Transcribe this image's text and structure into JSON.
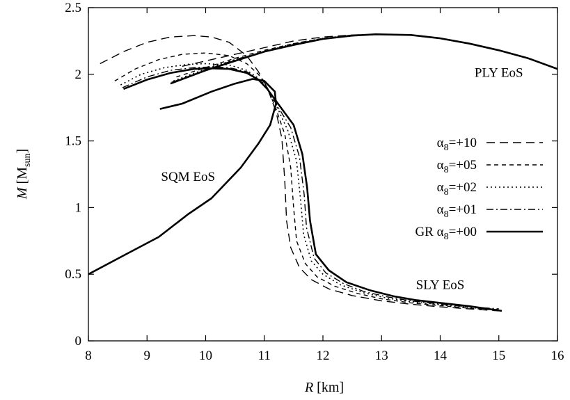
{
  "chart_data": {
    "type": "line",
    "xlabel": {
      "var": "R",
      "unit": " [km]"
    },
    "ylabel": {
      "var": "M",
      "base": " [M",
      "sub": "sun",
      "close": "]"
    },
    "xlim": [
      8,
      16
    ],
    "ylim": [
      0,
      2.5
    ],
    "xticks": [
      "8",
      "9",
      "10",
      "11",
      "12",
      "13",
      "14",
      "15",
      "16"
    ],
    "yticks": [
      "0",
      "0.5",
      "1",
      "1.5",
      "2",
      "2.5"
    ],
    "grid": false,
    "legend_position": "right-center",
    "annotations": [
      {
        "text": "PLY EoS",
        "x": 15.0,
        "y": 1.98
      },
      {
        "text": "SQM EoS",
        "x": 9.7,
        "y": 1.2
      },
      {
        "text": "SLY EoS",
        "x": 14.0,
        "y": 0.39
      }
    ],
    "series": [
      {
        "name_prefix": "",
        "name_sym": "α",
        "name_sub": "8",
        "name_suffix": "=+10",
        "dash": "12,7",
        "width": 1.4,
        "ply": [
          [
            8.2,
            2.08
          ],
          [
            8.6,
            2.17
          ],
          [
            9.0,
            2.24
          ],
          [
            9.4,
            2.28
          ],
          [
            9.8,
            2.29
          ],
          [
            10.1,
            2.28
          ],
          [
            10.4,
            2.24
          ],
          [
            10.7,
            2.14
          ],
          [
            10.9,
            2.02
          ],
          [
            11.05,
            1.9
          ],
          [
            11.2,
            1.72
          ],
          [
            11.3,
            1.52
          ],
          [
            11.35,
            1.2
          ],
          [
            11.38,
            0.9
          ],
          [
            11.45,
            0.7
          ],
          [
            11.6,
            0.55
          ],
          [
            11.8,
            0.46
          ],
          [
            12.1,
            0.39
          ],
          [
            12.5,
            0.34
          ],
          [
            13.0,
            0.3
          ],
          [
            13.5,
            0.275
          ],
          [
            14.0,
            0.255
          ],
          [
            14.5,
            0.24
          ],
          [
            15.0,
            0.225
          ]
        ],
        "sly": [
          [
            9.6,
            2.06
          ],
          [
            10.0,
            2.1
          ],
          [
            10.5,
            2.15
          ],
          [
            11.0,
            2.2
          ],
          [
            11.5,
            2.25
          ],
          [
            12.0,
            2.28
          ],
          [
            12.5,
            2.295
          ],
          [
            13.0,
            2.3
          ],
          [
            13.5,
            2.295
          ],
          [
            14.0,
            2.27
          ],
          [
            14.5,
            2.23
          ],
          [
            15.0,
            2.18
          ],
          [
            15.5,
            2.12
          ],
          [
            16.0,
            2.04
          ]
        ]
      },
      {
        "name_prefix": "",
        "name_sym": "α",
        "name_sub": "8",
        "name_suffix": "=+05",
        "dash": "6,5",
        "width": 1.4,
        "ply": [
          [
            8.45,
            1.95
          ],
          [
            8.8,
            2.04
          ],
          [
            9.2,
            2.11
          ],
          [
            9.6,
            2.15
          ],
          [
            10.0,
            2.16
          ],
          [
            10.4,
            2.14
          ],
          [
            10.7,
            2.08
          ],
          [
            10.9,
            2.0
          ],
          [
            11.05,
            1.9
          ],
          [
            11.2,
            1.74
          ],
          [
            11.35,
            1.55
          ],
          [
            11.45,
            1.3
          ],
          [
            11.5,
            1.0
          ],
          [
            11.55,
            0.75
          ],
          [
            11.7,
            0.58
          ],
          [
            11.9,
            0.48
          ],
          [
            12.2,
            0.41
          ],
          [
            12.6,
            0.355
          ],
          [
            13.0,
            0.315
          ],
          [
            13.5,
            0.285
          ],
          [
            14.0,
            0.265
          ],
          [
            14.5,
            0.245
          ],
          [
            15.0,
            0.23
          ]
        ],
        "sly": [
          [
            9.5,
            1.98
          ],
          [
            10.0,
            2.05
          ],
          [
            10.5,
            2.12
          ],
          [
            11.0,
            2.18
          ],
          [
            11.5,
            2.23
          ],
          [
            12.0,
            2.27
          ],
          [
            12.5,
            2.295
          ],
          [
            13.0,
            2.3
          ],
          [
            13.5,
            2.295
          ],
          [
            14.0,
            2.27
          ],
          [
            14.5,
            2.23
          ],
          [
            15.0,
            2.18
          ],
          [
            15.5,
            2.12
          ],
          [
            16.0,
            2.04
          ]
        ]
      },
      {
        "name_prefix": "",
        "name_sym": "α",
        "name_sub": "8",
        "name_suffix": "=+02",
        "dash": "2,4",
        "width": 1.6,
        "ply": [
          [
            8.55,
            1.92
          ],
          [
            8.9,
            2.0
          ],
          [
            9.3,
            2.05
          ],
          [
            9.7,
            2.075
          ],
          [
            10.0,
            2.08
          ],
          [
            10.4,
            2.07
          ],
          [
            10.7,
            2.03
          ],
          [
            10.9,
            1.97
          ],
          [
            11.05,
            1.9
          ],
          [
            11.2,
            1.77
          ],
          [
            11.4,
            1.58
          ],
          [
            11.55,
            1.35
          ],
          [
            11.62,
            1.05
          ],
          [
            11.67,
            0.8
          ],
          [
            11.8,
            0.6
          ],
          [
            12.0,
            0.5
          ],
          [
            12.3,
            0.42
          ],
          [
            12.7,
            0.36
          ],
          [
            13.1,
            0.32
          ],
          [
            13.5,
            0.295
          ],
          [
            14.0,
            0.27
          ],
          [
            14.5,
            0.25
          ],
          [
            15.0,
            0.235
          ]
        ],
        "sly": [
          [
            9.45,
            1.95
          ],
          [
            10.0,
            2.04
          ],
          [
            10.5,
            2.11
          ],
          [
            11.0,
            2.17
          ],
          [
            11.5,
            2.23
          ],
          [
            12.0,
            2.27
          ],
          [
            12.5,
            2.29
          ],
          [
            13.0,
            2.3
          ],
          [
            13.5,
            2.295
          ],
          [
            14.0,
            2.27
          ],
          [
            14.5,
            2.23
          ],
          [
            15.0,
            2.18
          ],
          [
            15.5,
            2.12
          ],
          [
            16.0,
            2.04
          ]
        ]
      },
      {
        "name_prefix": "",
        "name_sym": "α",
        "name_sub": "8",
        "name_suffix": "=+01",
        "dash": "10,4,2,4",
        "width": 1.4,
        "ply": [
          [
            8.58,
            1.9
          ],
          [
            9.0,
            1.98
          ],
          [
            9.4,
            2.03
          ],
          [
            9.8,
            2.05
          ],
          [
            10.1,
            2.055
          ],
          [
            10.4,
            2.05
          ],
          [
            10.7,
            2.02
          ],
          [
            10.9,
            1.96
          ],
          [
            11.05,
            1.89
          ],
          [
            11.2,
            1.78
          ],
          [
            11.45,
            1.6
          ],
          [
            11.6,
            1.38
          ],
          [
            11.68,
            1.1
          ],
          [
            11.72,
            0.85
          ],
          [
            11.85,
            0.62
          ],
          [
            12.05,
            0.51
          ],
          [
            12.35,
            0.43
          ],
          [
            12.7,
            0.37
          ],
          [
            13.1,
            0.33
          ],
          [
            13.5,
            0.3
          ],
          [
            14.0,
            0.275
          ],
          [
            14.5,
            0.255
          ],
          [
            15.0,
            0.24
          ]
        ],
        "sly": [
          [
            9.42,
            1.94
          ],
          [
            10.0,
            2.03
          ],
          [
            10.5,
            2.11
          ],
          [
            11.0,
            2.17
          ],
          [
            11.5,
            2.225
          ],
          [
            12.0,
            2.265
          ],
          [
            12.5,
            2.29
          ],
          [
            13.0,
            2.3
          ],
          [
            13.5,
            2.295
          ],
          [
            14.0,
            2.27
          ],
          [
            14.5,
            2.23
          ],
          [
            15.0,
            2.18
          ],
          [
            15.5,
            2.12
          ],
          [
            16.0,
            2.04
          ]
        ]
      },
      {
        "name_prefix": "GR ",
        "name_sym": "α",
        "name_sub": "8",
        "name_suffix": "=+00",
        "dash": "",
        "width": 2.6,
        "ply": [
          [
            8.6,
            1.89
          ],
          [
            9.0,
            1.96
          ],
          [
            9.4,
            2.01
          ],
          [
            9.8,
            2.04
          ],
          [
            10.1,
            2.045
          ],
          [
            10.4,
            2.04
          ],
          [
            10.7,
            2.01
          ],
          [
            10.9,
            1.96
          ],
          [
            11.05,
            1.89
          ],
          [
            11.2,
            1.8
          ],
          [
            11.5,
            1.62
          ],
          [
            11.65,
            1.4
          ],
          [
            11.73,
            1.15
          ],
          [
            11.78,
            0.9
          ],
          [
            11.88,
            0.65
          ],
          [
            12.1,
            0.53
          ],
          [
            12.4,
            0.44
          ],
          [
            12.8,
            0.38
          ],
          [
            13.2,
            0.335
          ],
          [
            13.6,
            0.305
          ],
          [
            14.0,
            0.285
          ],
          [
            14.5,
            0.26
          ],
          [
            15.05,
            0.225
          ]
        ],
        "sly": [
          [
            9.4,
            1.93
          ],
          [
            10.0,
            2.03
          ],
          [
            10.5,
            2.1
          ],
          [
            11.0,
            2.17
          ],
          [
            11.5,
            2.22
          ],
          [
            12.0,
            2.265
          ],
          [
            12.5,
            2.29
          ],
          [
            12.9,
            2.3
          ],
          [
            13.5,
            2.295
          ],
          [
            14.0,
            2.27
          ],
          [
            14.5,
            2.23
          ],
          [
            15.0,
            2.18
          ],
          [
            15.5,
            2.12
          ],
          [
            16.0,
            2.04
          ]
        ]
      }
    ],
    "sqm": {
      "width": 2.6,
      "points": [
        [
          8.0,
          0.5
        ],
        [
          8.6,
          0.64
        ],
        [
          9.2,
          0.78
        ],
        [
          9.7,
          0.95
        ],
        [
          10.1,
          1.07
        ],
        [
          10.6,
          1.3
        ],
        [
          10.9,
          1.48
        ],
        [
          11.1,
          1.62
        ],
        [
          11.2,
          1.78
        ],
        [
          11.18,
          1.87
        ],
        [
          11.0,
          1.95
        ],
        [
          10.8,
          1.965
        ],
        [
          10.5,
          1.93
        ],
        [
          10.1,
          1.87
        ],
        [
          9.6,
          1.78
        ],
        [
          9.22,
          1.74
        ]
      ]
    }
  }
}
